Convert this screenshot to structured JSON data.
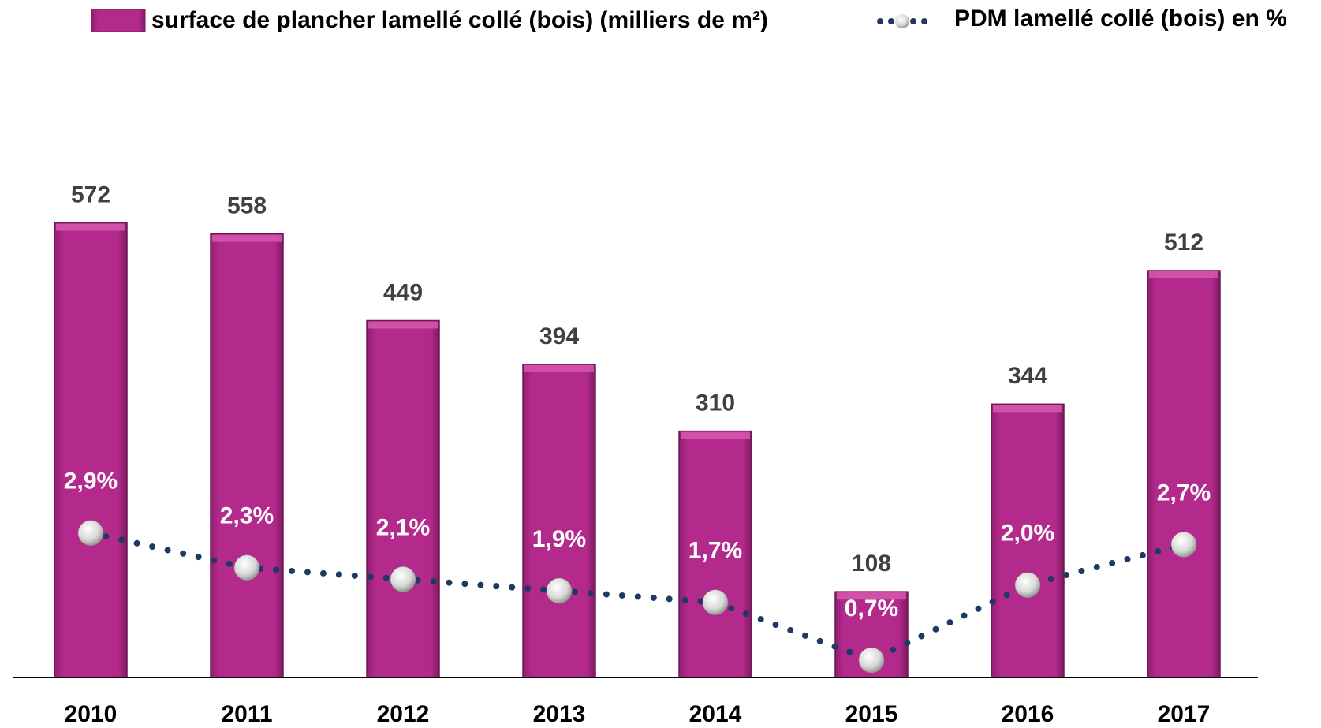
{
  "chart_data": {
    "type": "bar",
    "categories": [
      "2010",
      "2011",
      "2012",
      "2013",
      "2014",
      "2015",
      "2016",
      "2017"
    ],
    "ylim": [
      0,
      640
    ],
    "y2lim": [
      0.4,
      9.2
    ],
    "series": [
      {
        "name": "surface de plancher lamellé collé (bois) (milliers de m²)",
        "type": "bar",
        "color": "#b32a8c",
        "values": [
          572,
          558,
          449,
          394,
          310,
          108,
          344,
          512
        ]
      },
      {
        "name": "PDM lamellé collé (bois) en %",
        "type": "line",
        "axis": "y2",
        "color": "#1f3864",
        "values": [
          2.9,
          2.3,
          2.1,
          1.9,
          1.7,
          0.7,
          2.0,
          2.7
        ],
        "value_labels": [
          "2,9%",
          "2,3%",
          "2,1%",
          "1,9%",
          "1,7%",
          "0,7%",
          "2,0%",
          "2,7%"
        ]
      }
    ],
    "legend": "top"
  }
}
